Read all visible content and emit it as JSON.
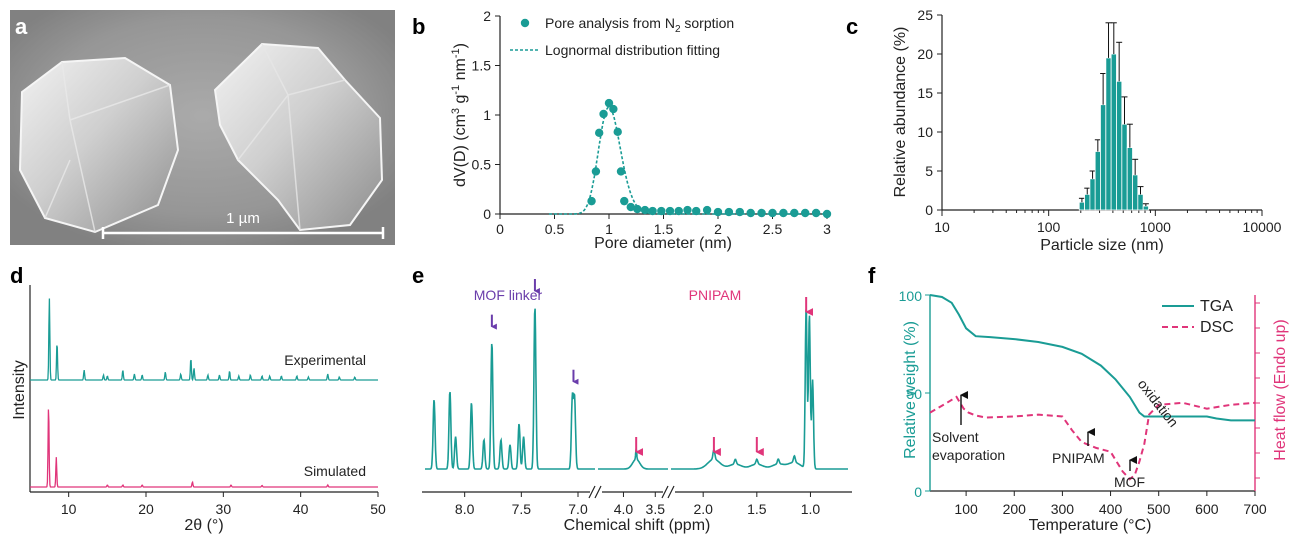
{
  "colors": {
    "teal": "#1a9c95",
    "pink": "#e0357a",
    "purple": "#6a3dab",
    "axis": "#222222"
  },
  "panel_labels": {
    "a": "a",
    "b": "b",
    "c": "c",
    "d": "d",
    "e": "e",
    "f": "f"
  },
  "sem": {
    "scale_label": "1 µm"
  },
  "chart_data": [
    {
      "panel": "b",
      "type": "scatter",
      "xlabel": "Pore diameter (nm)",
      "ylabel_parts": [
        "dV(D) (cm",
        "3",
        " g",
        "-1",
        " nm",
        "-1",
        ")"
      ],
      "xlim": [
        0,
        3
      ],
      "ylim": [
        0,
        2
      ],
      "xticks": [
        "0",
        "0.5",
        "1",
        "1.5",
        "2",
        "2.5",
        "3"
      ],
      "yticks": [
        "0",
        "0.5",
        "1",
        "1.5",
        "2"
      ],
      "legend": {
        "sorption_text": "Pore analysis from N",
        "sorption_sub": "2",
        "sorption_tail": " sorption",
        "fit": "Lognormal distribution fitting"
      },
      "points": [
        [
          0.84,
          0.13
        ],
        [
          0.88,
          0.43
        ],
        [
          0.91,
          0.82
        ],
        [
          0.95,
          1.01
        ],
        [
          1.0,
          1.12
        ],
        [
          1.04,
          1.06
        ],
        [
          1.08,
          0.83
        ],
        [
          1.11,
          0.43
        ],
        [
          1.14,
          0.13
        ],
        [
          1.2,
          0.07
        ],
        [
          1.26,
          0.05
        ],
        [
          1.33,
          0.04
        ],
        [
          1.4,
          0.03
        ],
        [
          1.48,
          0.03
        ],
        [
          1.56,
          0.03
        ],
        [
          1.64,
          0.03
        ],
        [
          1.72,
          0.04
        ],
        [
          1.8,
          0.03
        ],
        [
          1.9,
          0.04
        ],
        [
          2.0,
          0.02
        ],
        [
          2.1,
          0.02
        ],
        [
          2.2,
          0.02
        ],
        [
          2.3,
          0.01
        ],
        [
          2.4,
          0.01
        ],
        [
          2.5,
          0.01
        ],
        [
          2.6,
          0.01
        ],
        [
          2.7,
          0.01
        ],
        [
          2.8,
          0.01
        ],
        [
          2.9,
          0.01
        ],
        [
          3.0,
          0.0
        ]
      ],
      "fit": {
        "peak_x": 1.0,
        "amplitude": 1.08,
        "sigma": 0.1
      }
    },
    {
      "panel": "c",
      "type": "bar",
      "xscale": "log",
      "xlabel": "Particle size (nm)",
      "ylabel": "Relative abundance (%)",
      "xlim": [
        10,
        10000
      ],
      "ylim": [
        0,
        25
      ],
      "xticks": [
        "10",
        "100",
        "1000",
        "10000"
      ],
      "yticks": [
        "0",
        "5",
        "10",
        "15",
        "20",
        "25"
      ],
      "bins": [
        205,
        230,
        258,
        289,
        324,
        364,
        408,
        458,
        514,
        577,
        647,
        726,
        815
      ],
      "values": [
        1,
        2,
        4,
        7.5,
        13.5,
        19.5,
        20,
        16.5,
        11,
        8,
        4.5,
        2,
        0.5
      ],
      "errors": [
        0.5,
        0.8,
        1.0,
        1.5,
        4.0,
        4.5,
        4.0,
        5.0,
        3.5,
        3.0,
        2.0,
        1.0,
        0.3
      ]
    },
    {
      "panel": "d",
      "type": "line",
      "xlabel": "2θ (°)",
      "ylabel": "Intensity",
      "xlim": [
        5,
        50
      ],
      "xticks": [
        "10",
        "20",
        "30",
        "40",
        "50"
      ],
      "series": [
        {
          "name": "Experimental",
          "color": "teal",
          "peaks": [
            [
              7.5,
              82
            ],
            [
              8.5,
              38
            ],
            [
              12,
              10
            ],
            [
              14.5,
              5
            ],
            [
              15,
              4
            ],
            [
              17,
              10
            ],
            [
              18.5,
              6
            ],
            [
              19.5,
              5
            ],
            [
              22.5,
              8
            ],
            [
              24.5,
              6
            ],
            [
              25.8,
              22
            ],
            [
              26.2,
              12
            ],
            [
              28,
              5
            ],
            [
              29.5,
              5
            ],
            [
              30.8,
              9
            ],
            [
              32,
              4
            ],
            [
              33.5,
              5
            ],
            [
              35,
              4
            ],
            [
              36,
              4
            ],
            [
              37.5,
              4
            ],
            [
              39.5,
              4
            ],
            [
              41,
              3
            ],
            [
              43.5,
              6
            ],
            [
              45,
              3
            ],
            [
              47,
              3
            ]
          ]
        },
        {
          "name": "Simulated",
          "color": "pink",
          "peaks": [
            [
              7.4,
              82
            ],
            [
              8.4,
              30
            ],
            [
              15,
              2
            ],
            [
              17,
              2
            ],
            [
              19.5,
              2
            ],
            [
              26,
              5
            ],
            [
              31,
              2
            ],
            [
              35,
              1.5
            ],
            [
              43.5,
              2
            ]
          ]
        }
      ]
    },
    {
      "panel": "e",
      "type": "line",
      "xlabel": "Chemical shift (ppm)",
      "xticks": [
        "8.0",
        "7.5",
        "7.0",
        "4.0",
        "3.5",
        "2.0",
        "1.5",
        "1.0"
      ],
      "annotations": {
        "mof": "MOF linker",
        "pnipam": "PNIPAM"
      },
      "peaks": [
        [
          8.27,
          43
        ],
        [
          8.13,
          48
        ],
        [
          8.08,
          20
        ],
        [
          7.94,
          41
        ],
        [
          7.83,
          18
        ],
        [
          7.76,
          78
        ],
        [
          7.68,
          18
        ],
        [
          7.6,
          15
        ],
        [
          7.52,
          28
        ],
        [
          7.48,
          20
        ],
        [
          7.38,
          100
        ],
        [
          7.05,
          44
        ],
        [
          7.03,
          43
        ],
        [
          3.8,
          6
        ],
        [
          1.9,
          6
        ],
        [
          1.7,
          3
        ],
        [
          1.5,
          3
        ],
        [
          1.3,
          3
        ],
        [
          1.15,
          4
        ],
        [
          1.04,
          100
        ],
        [
          1.01,
          95
        ],
        [
          0.98,
          55
        ]
      ]
    },
    {
      "panel": "f",
      "type": "line",
      "xlabel": "Temperature (°C)",
      "ylabel": "Relative weight (%)",
      "ylabel_right": "Heat flow (Endo up)",
      "xlim": [
        25,
        700
      ],
      "ylim": [
        0,
        100
      ],
      "xticks": [
        "100",
        "200",
        "300",
        "400",
        "500",
        "600",
        "700"
      ],
      "yticks": [
        "0",
        "50",
        "100"
      ],
      "series": [
        {
          "name": "TGA",
          "color": "teal",
          "style": "solid",
          "x": [
            25,
            50,
            70,
            85,
            100,
            120,
            150,
            200,
            250,
            300,
            340,
            380,
            410,
            440,
            460,
            470,
            480,
            500,
            600,
            620,
            650,
            700
          ],
          "y": [
            100,
            99,
            96,
            90,
            83,
            79,
            78.5,
            77.5,
            76,
            73.5,
            70,
            64,
            57,
            48,
            40,
            38,
            38,
            38,
            38,
            37,
            36,
            36
          ]
        },
        {
          "name": "DSC",
          "color": "pink",
          "style": "dashed",
          "x": [
            25,
            60,
            80,
            95,
            105,
            120,
            140,
            200,
            250,
            300,
            320,
            340,
            370,
            400,
            425,
            440,
            450,
            460,
            470,
            480,
            500,
            550,
            600,
            650,
            700
          ],
          "y": [
            40,
            45,
            48,
            42,
            40,
            38.5,
            37.5,
            38,
            39,
            38,
            31,
            25,
            22,
            20,
            10,
            6,
            8,
            15,
            24,
            39,
            44,
            45,
            42,
            44,
            45
          ]
        }
      ],
      "annotations": {
        "solvent": [
          "Solvent",
          "evaporation"
        ],
        "oxidation": "oxidation",
        "pnipam": "PNIPAM",
        "mof": "MOF"
      }
    }
  ]
}
